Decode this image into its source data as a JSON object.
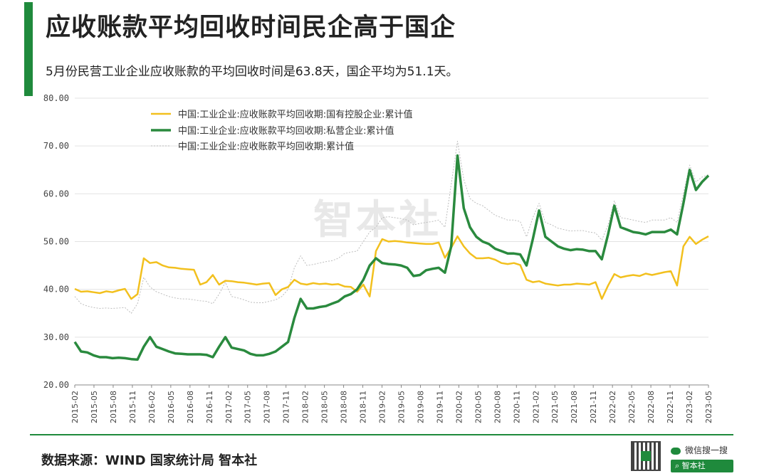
{
  "header": {
    "title": "应收账款平均回收时间民企高于国企",
    "subtitle": "5月份民营工业企业应收账款的平均回收时间是63.8天，国企平均为51.1天。"
  },
  "watermark": "智本社",
  "footer": {
    "source": "数据来源：WIND 国家统计局 智本社",
    "wechat_label": "微信搜一搜",
    "search_label": "智本社"
  },
  "colors": {
    "accent": "#1f8a3c",
    "state_owned": "#f2c01e",
    "private": "#2a8a3e",
    "all": "#bdbdbd"
  },
  "chart_data": {
    "type": "line",
    "ylim": [
      20,
      80
    ],
    "y_ticks": [
      "20.00",
      "30.00",
      "40.00",
      "50.00",
      "60.00",
      "70.00",
      "80.00"
    ],
    "x_ticks": [
      "2015-02",
      "2015-05",
      "2015-08",
      "2015-11",
      "2016-02",
      "2016-05",
      "2016-08",
      "2016-11",
      "2017-02",
      "2017-05",
      "2017-08",
      "2017-11",
      "2018-02",
      "2018-05",
      "2018-08",
      "2018-11",
      "2019-02",
      "2019-05",
      "2019-08",
      "2019-11",
      "2020-02",
      "2020-05",
      "2020-08",
      "2020-11",
      "2021-02",
      "2021-05",
      "2021-08",
      "2021-11",
      "2022-02",
      "2022-05",
      "2022-08",
      "2022-11",
      "2023-02",
      "2023-05"
    ],
    "grid": true,
    "legend_position": "top-left",
    "series": [
      {
        "name": "中国:工业企业:应收账款平均回收期:国有控股企业:累计值",
        "color": "#f2c01e",
        "values": [
          40.1,
          39.5,
          39.6,
          39.4,
          39.2,
          39.6,
          39.4,
          39.8,
          40.1,
          38.0,
          39.0,
          46.5,
          45.5,
          45.7,
          45.0,
          44.6,
          44.5,
          44.3,
          44.2,
          44.1,
          41.0,
          41.5,
          43.0,
          41.0,
          41.8,
          41.7,
          41.5,
          41.4,
          41.2,
          41.0,
          41.2,
          41.3,
          38.8,
          40.0,
          40.5,
          42.0,
          41.2,
          41.0,
          41.3,
          41.1,
          41.2,
          41.0,
          41.1,
          40.6,
          40.5,
          39.5,
          41.0,
          38.5,
          48.0,
          50.5,
          50.0,
          50.1,
          50.0,
          49.8,
          49.7,
          49.6,
          49.5,
          49.5,
          49.8,
          46.6,
          48.7,
          51.1,
          49.0,
          47.5,
          46.5,
          46.5,
          46.6,
          46.2,
          45.5,
          45.3,
          45.5,
          45.1,
          42.0,
          41.5,
          41.7,
          41.2,
          41.0,
          40.8,
          41.0,
          41.0,
          41.2,
          41.1,
          41.0,
          41.5,
          38.0,
          40.8,
          43.2,
          42.5,
          42.8,
          43.0,
          42.8,
          43.3,
          43.0,
          43.3,
          43.6,
          43.8,
          40.8,
          49.0,
          51.0,
          49.5,
          50.4,
          51.1
        ]
      },
      {
        "name": "中国:工业企业:应收账款平均回收期:私营企业:累计值",
        "color": "#2a8a3e",
        "values": [
          29.0,
          27.0,
          26.8,
          26.2,
          25.8,
          25.8,
          25.6,
          25.7,
          25.6,
          25.4,
          25.3,
          28.0,
          30.0,
          28.0,
          27.5,
          27.0,
          26.6,
          26.5,
          26.4,
          26.4,
          26.4,
          26.3,
          25.8,
          28.0,
          30.0,
          27.8,
          27.5,
          27.2,
          26.5,
          26.2,
          26.2,
          26.5,
          27.0,
          28.0,
          29.0,
          34.0,
          38.0,
          36.0,
          36.0,
          36.3,
          36.5,
          37.0,
          37.5,
          38.5,
          39.0,
          40.0,
          42.0,
          45.0,
          46.5,
          45.5,
          45.3,
          45.2,
          45.0,
          44.5,
          42.8,
          43.0,
          44.0,
          44.3,
          44.5,
          43.5,
          49.0,
          68.0,
          57.0,
          53.0,
          51.0,
          50.0,
          49.5,
          48.5,
          48.0,
          47.5,
          47.5,
          47.3,
          45.0,
          50.5,
          56.5,
          51.0,
          50.0,
          49.0,
          48.5,
          48.2,
          48.4,
          48.3,
          48.0,
          48.0,
          46.3,
          51.5,
          57.5,
          53.0,
          52.5,
          52.0,
          51.8,
          51.5,
          52.0,
          52.0,
          52.0,
          52.5,
          51.5,
          58.0,
          65.0,
          60.8,
          62.5,
          63.8
        ]
      },
      {
        "name": "中国:工业企业:应收账款平均回收期:累计值",
        "color": "#bdbdbd",
        "values": [
          38.5,
          37.0,
          36.5,
          36.2,
          36.0,
          36.1,
          36.0,
          36.1,
          36.2,
          35.0,
          37.0,
          42.5,
          40.5,
          39.5,
          39.0,
          38.5,
          38.2,
          38.0,
          38.0,
          37.8,
          37.6,
          37.5,
          37.0,
          39.0,
          41.5,
          38.5,
          38.2,
          37.8,
          37.3,
          37.2,
          37.2,
          37.5,
          37.8,
          38.5,
          40.0,
          44.5,
          47.0,
          45.0,
          45.2,
          45.5,
          45.8,
          46.0,
          46.5,
          47.5,
          47.8,
          48.0,
          50.0,
          52.0,
          53.0,
          55.0,
          55.2,
          55.0,
          54.8,
          54.5,
          53.5,
          53.8,
          54.0,
          54.2,
          54.5,
          53.0,
          62.0,
          71.0,
          63.0,
          59.0,
          58.0,
          57.5,
          56.5,
          55.5,
          55.0,
          54.5,
          54.5,
          54.2,
          51.0,
          55.0,
          58.0,
          54.0,
          53.5,
          52.8,
          52.5,
          52.2,
          52.3,
          52.3,
          52.0,
          51.8,
          50.3,
          53.5,
          58.5,
          55.0,
          54.8,
          54.5,
          54.2,
          54.0,
          54.5,
          54.5,
          54.5,
          55.0,
          54.0,
          60.0,
          66.0,
          62.5,
          63.5,
          64.0
        ]
      }
    ]
  }
}
